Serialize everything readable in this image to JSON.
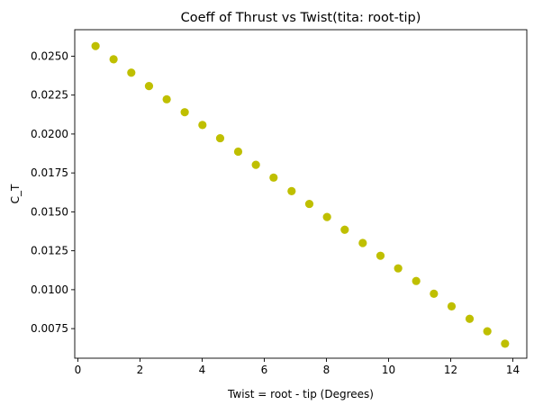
{
  "chart_data": {
    "type": "scatter",
    "title": "Coeff of Thrust vs Twist(tita: root-tip)",
    "xlabel": "Twist = root - tip (Degrees)",
    "ylabel": "C_T",
    "xlim": [
      -0.1,
      14.45
    ],
    "ylim": [
      0.0056,
      0.0267
    ],
    "xticks": [
      0,
      2,
      4,
      6,
      8,
      10,
      12,
      14
    ],
    "xtick_labels": [
      "0",
      "2",
      "4",
      "6",
      "8",
      "10",
      "12",
      "14"
    ],
    "yticks": [
      0.0075,
      0.01,
      0.0125,
      0.015,
      0.0175,
      0.02,
      0.0225,
      0.025
    ],
    "ytick_labels": [
      "0.0075",
      "0.0100",
      "0.0125",
      "0.0150",
      "0.0175",
      "0.0200",
      "0.0225",
      "0.0250"
    ],
    "grid": false,
    "marker_color": "#bfbf00",
    "x": [
      0.57,
      1.15,
      1.72,
      2.29,
      2.86,
      3.44,
      4.01,
      4.58,
      5.16,
      5.73,
      6.3,
      6.88,
      7.45,
      8.02,
      8.59,
      9.17,
      9.74,
      10.31,
      10.89,
      11.46,
      12.03,
      12.61,
      13.18,
      13.75
    ],
    "y": [
      0.02565,
      0.0248,
      0.02394,
      0.02308,
      0.02223,
      0.0214,
      0.02058,
      0.01973,
      0.01887,
      0.01802,
      0.0172,
      0.01633,
      0.01551,
      0.01467,
      0.01385,
      0.013,
      0.01218,
      0.01137,
      0.01056,
      0.00974,
      0.00893,
      0.00813,
      0.00733,
      0.00653
    ]
  }
}
